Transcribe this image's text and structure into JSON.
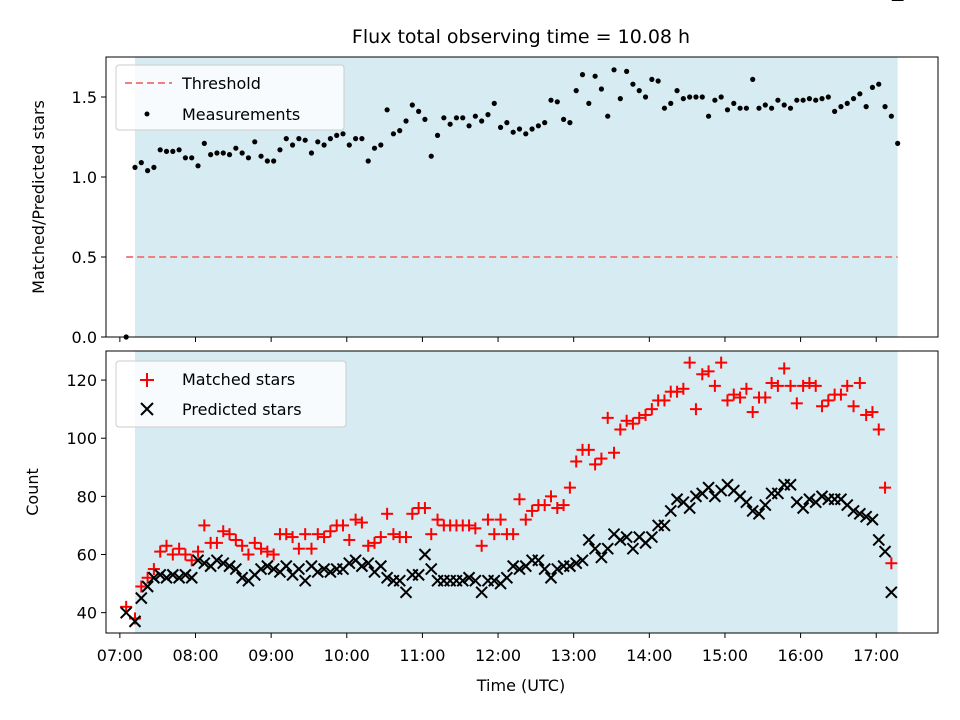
{
  "chart_data": [
    {
      "type": "scatter",
      "title": "Flux total observing time = 10.08 h",
      "xlabel": "",
      "ylabel": "Matched/Predicted stars",
      "xlim": [
        "06:49",
        "17:49"
      ],
      "ylim": [
        0,
        1.75
      ],
      "yticks": [
        0.0,
        0.5,
        1.0,
        1.5
      ],
      "ytick_labels": [
        "0.0",
        "0.5",
        "1.0",
        "1.5"
      ],
      "grid": false,
      "legend_position": "top-left",
      "observing_window": [
        "07:12",
        "17:17"
      ],
      "threshold": {
        "name": "Threshold",
        "value": 0.5,
        "color": "#f08080"
      },
      "series": [
        {
          "name": "Measurements",
          "color": "#000000",
          "x": [
            "07:05",
            "07:12",
            "07:17",
            "07:22",
            "07:27",
            "07:32",
            "07:37",
            "07:42",
            "07:47",
            "07:52",
            "07:57",
            "08:02",
            "08:07",
            "08:12",
            "08:17",
            "08:22",
            "08:27",
            "08:32",
            "08:37",
            "08:42",
            "08:47",
            "08:52",
            "08:57",
            "09:02",
            "09:07",
            "09:12",
            "09:17",
            "09:22",
            "09:27",
            "09:32",
            "09:37",
            "09:42",
            "09:47",
            "09:52",
            "09:57",
            "10:02",
            "10:07",
            "10:12",
            "10:17",
            "10:22",
            "10:27",
            "10:32",
            "10:37",
            "10:42",
            "10:47",
            "10:52",
            "10:57",
            "11:02",
            "11:07",
            "11:12",
            "11:17",
            "11:22",
            "11:27",
            "11:32",
            "11:37",
            "11:42",
            "11:47",
            "11:52",
            "11:57",
            "12:02",
            "12:07",
            "12:12",
            "12:17",
            "12:22",
            "12:27",
            "12:32",
            "12:37",
            "12:42",
            "12:47",
            "12:52",
            "12:57",
            "13:02",
            "13:07",
            "13:12",
            "13:17",
            "13:22",
            "13:27",
            "13:32",
            "13:37",
            "13:42",
            "13:47",
            "13:52",
            "13:57",
            "14:02",
            "14:07",
            "14:12",
            "14:17",
            "14:22",
            "14:27",
            "14:32",
            "14:37",
            "14:42",
            "14:47",
            "14:52",
            "14:57",
            "15:02",
            "15:07",
            "15:12",
            "15:17",
            "15:22",
            "15:27",
            "15:32",
            "15:37",
            "15:42",
            "15:47",
            "15:52",
            "15:57",
            "16:02",
            "16:07",
            "16:12",
            "16:17",
            "16:22",
            "16:27",
            "16:32",
            "16:37",
            "16:42",
            "16:47",
            "16:52",
            "16:57",
            "17:02",
            "17:07",
            "17:12",
            "17:17"
          ],
          "y": [
            0.0,
            1.06,
            1.09,
            1.04,
            1.06,
            1.17,
            1.16,
            1.16,
            1.17,
            1.12,
            1.12,
            1.07,
            1.21,
            1.14,
            1.15,
            1.15,
            1.14,
            1.18,
            1.15,
            1.12,
            1.22,
            1.13,
            1.1,
            1.1,
            1.17,
            1.24,
            1.2,
            1.24,
            1.23,
            1.15,
            1.22,
            1.2,
            1.24,
            1.26,
            1.27,
            1.2,
            1.24,
            1.24,
            1.1,
            1.18,
            1.2,
            1.42,
            1.27,
            1.29,
            1.35,
            1.45,
            1.41,
            1.36,
            1.13,
            1.26,
            1.37,
            1.33,
            1.37,
            1.37,
            1.32,
            1.38,
            1.35,
            1.39,
            1.46,
            1.31,
            1.34,
            1.28,
            1.3,
            1.27,
            1.3,
            1.32,
            1.34,
            1.48,
            1.47,
            1.36,
            1.34,
            1.54,
            1.64,
            1.46,
            1.63,
            1.55,
            1.38,
            1.67,
            1.49,
            1.66,
            1.58,
            1.54,
            1.5,
            1.61,
            1.6,
            1.43,
            1.46,
            1.54,
            1.49,
            1.5,
            1.5,
            1.5,
            1.38,
            1.48,
            1.5,
            1.42,
            1.46,
            1.43,
            1.43,
            1.61,
            1.43,
            1.45,
            1.43,
            1.48,
            1.45,
            1.43,
            1.48,
            1.48,
            1.49,
            1.48,
            1.49,
            1.5,
            1.41,
            1.44,
            1.46,
            1.49,
            1.52,
            1.44,
            1.56,
            1.58,
            1.44,
            1.38,
            1.21
          ]
        }
      ]
    },
    {
      "type": "scatter",
      "title": "",
      "xlabel": "Time (UTC)",
      "ylabel": "Count",
      "xlim": [
        "06:49",
        "17:49"
      ],
      "ylim": [
        33,
        130
      ],
      "xticks": [
        "07:00",
        "08:00",
        "09:00",
        "10:00",
        "11:00",
        "12:00",
        "13:00",
        "14:00",
        "15:00",
        "16:00",
        "17:00"
      ],
      "yticks": [
        40,
        60,
        80,
        100,
        120
      ],
      "ytick_labels": [
        "40",
        "60",
        "80",
        "100",
        "120"
      ],
      "grid": false,
      "legend_position": "top-left",
      "observing_window": [
        "07:12",
        "17:17"
      ],
      "x": [
        "07:05",
        "07:12",
        "07:17",
        "07:22",
        "07:27",
        "07:32",
        "07:37",
        "07:42",
        "07:47",
        "07:52",
        "07:57",
        "08:02",
        "08:07",
        "08:12",
        "08:17",
        "08:22",
        "08:27",
        "08:32",
        "08:37",
        "08:42",
        "08:47",
        "08:52",
        "08:57",
        "09:02",
        "09:07",
        "09:12",
        "09:17",
        "09:22",
        "09:27",
        "09:32",
        "09:37",
        "09:42",
        "09:47",
        "09:52",
        "09:57",
        "10:02",
        "10:07",
        "10:12",
        "10:17",
        "10:22",
        "10:27",
        "10:32",
        "10:37",
        "10:42",
        "10:47",
        "10:52",
        "10:57",
        "11:02",
        "11:07",
        "11:12",
        "11:17",
        "11:22",
        "11:27",
        "11:32",
        "11:37",
        "11:42",
        "11:47",
        "11:52",
        "11:57",
        "12:02",
        "12:07",
        "12:12",
        "12:17",
        "12:22",
        "12:27",
        "12:32",
        "12:37",
        "12:42",
        "12:47",
        "12:52",
        "12:57",
        "13:02",
        "13:07",
        "13:12",
        "13:17",
        "13:22",
        "13:27",
        "13:32",
        "13:37",
        "13:42",
        "13:47",
        "13:52",
        "13:57",
        "14:02",
        "14:07",
        "14:12",
        "14:17",
        "14:22",
        "14:27",
        "14:32",
        "14:37",
        "14:42",
        "14:47",
        "14:52",
        "14:57",
        "15:02",
        "15:07",
        "15:12",
        "15:17",
        "15:22",
        "15:27",
        "15:32",
        "15:37",
        "15:42",
        "15:47",
        "15:52",
        "15:57",
        "16:02",
        "16:07",
        "16:12",
        "16:17",
        "16:22",
        "16:27",
        "16:32",
        "16:37",
        "16:42",
        "16:47",
        "16:52",
        "16:57",
        "17:02",
        "17:07",
        "17:12",
        "17:17"
      ],
      "series": [
        {
          "name": "Matched stars",
          "marker": "plus",
          "color": "#ff0000",
          "y": [
            42,
            38,
            49,
            52,
            55,
            61,
            63,
            60,
            62,
            60,
            58,
            61,
            70,
            64,
            64,
            68,
            67,
            65,
            63,
            60,
            64,
            62,
            61,
            60,
            67,
            67,
            66,
            62,
            67,
            62,
            67,
            66,
            68,
            70,
            70,
            65,
            72,
            71,
            63,
            64,
            66,
            74,
            67,
            66,
            66,
            74,
            76,
            76,
            67,
            72,
            70,
            70,
            70,
            70,
            70,
            69,
            63,
            72,
            67,
            72,
            67,
            67,
            79,
            72,
            75,
            77,
            77,
            80,
            76,
            77,
            83,
            92,
            96,
            96,
            91,
            93,
            107,
            95,
            103,
            106,
            105,
            107,
            108,
            110,
            113,
            113,
            116,
            116,
            117,
            126,
            110,
            122,
            123,
            118,
            126,
            113,
            115,
            114,
            117,
            109,
            114,
            114,
            119,
            118,
            124,
            118,
            112,
            118,
            119,
            118,
            111,
            113,
            115,
            115,
            118,
            111,
            119,
            108,
            109,
            103,
            83,
            57
          ]
        },
        {
          "name": "Predicted stars",
          "marker": "x",
          "color": "#000000",
          "y": [
            40,
            37,
            45,
            49,
            52,
            53,
            52,
            53,
            52,
            53,
            52,
            58,
            57,
            56,
            58,
            57,
            56,
            55,
            52,
            51,
            53,
            55,
            56,
            55,
            54,
            56,
            53,
            55,
            51,
            56,
            54,
            55,
            54,
            55,
            55,
            57,
            58,
            56,
            57,
            54,
            56,
            52,
            51,
            51,
            47,
            53,
            53,
            60,
            55,
            51,
            51,
            51,
            51,
            51,
            52,
            51,
            47,
            51,
            51,
            50,
            52,
            56,
            55,
            56,
            58,
            58,
            55,
            52,
            55,
            56,
            56,
            57,
            58,
            65,
            62,
            59,
            62,
            67,
            65,
            66,
            62,
            66,
            64,
            66,
            70,
            70,
            75,
            79,
            78,
            76,
            80,
            81,
            83,
            80,
            82,
            84,
            82,
            80,
            78,
            75,
            74,
            77,
            81,
            81,
            84,
            84,
            78,
            76,
            79,
            78,
            80,
            79,
            79,
            79,
            77,
            75,
            74,
            73,
            72,
            65,
            61,
            47
          ]
        }
      ]
    }
  ]
}
